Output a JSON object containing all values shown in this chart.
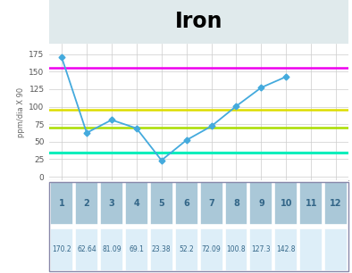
{
  "title": "Iron",
  "ylabel": "ppm/dia X 90",
  "x_data": [
    1,
    2,
    3,
    4,
    5,
    6,
    7,
    8,
    9,
    10
  ],
  "y_data": [
    170.2,
    62.64,
    81.09,
    69.1,
    23.38,
    52.2,
    72.09,
    100.8,
    127.3,
    142.8
  ],
  "xlim": [
    0.5,
    12.5
  ],
  "ylim": [
    -5,
    190
  ],
  "yticks": [
    0,
    25,
    50,
    75,
    100,
    125,
    150,
    175
  ],
  "xticks": [
    1,
    2,
    3,
    4,
    5,
    6,
    7,
    8,
    9,
    10,
    11,
    12
  ],
  "hlines": [
    {
      "y": 155,
      "color": "#ee00ee",
      "lw": 1.8
    },
    {
      "y": 95,
      "color": "#dddd00",
      "lw": 1.8
    },
    {
      "y": 70,
      "color": "#aadd00",
      "lw": 1.8
    },
    {
      "y": 35,
      "color": "#00eebb",
      "lw": 2.2
    }
  ],
  "line_color": "#44aadd",
  "marker_color": "#44aadd",
  "title_bg": "#e0eaec",
  "plot_bg": "#ffffff",
  "fig_bg": "#ffffff",
  "grid_color": "#cccccc",
  "table_header_bg": "#aac8d8",
  "table_value_bg": "#ddeef8",
  "table_labels": [
    "1",
    "2",
    "3",
    "4",
    "5",
    "6",
    "7",
    "8",
    "9",
    "10",
    "11",
    "12"
  ],
  "table_values": [
    "170.2",
    "62.64",
    "81.09",
    "69.1",
    "23.38",
    "52.2",
    "72.09",
    "100.8",
    "127.3",
    "142.8",
    "",
    ""
  ],
  "label_color": "#336688",
  "value_color": "#336688"
}
